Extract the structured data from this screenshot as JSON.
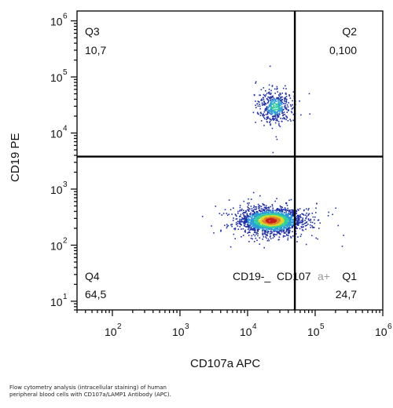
{
  "chart_data": {
    "type": "scatter",
    "xlabel": "CD107a APC",
    "ylabel": "CD19 PE",
    "scale": "log",
    "xlim": [
      30,
      1000000
    ],
    "ylim": [
      7,
      1500000
    ],
    "x_ticks": [
      {
        "base": "10",
        "exp": "2"
      },
      {
        "base": "10",
        "exp": "3"
      },
      {
        "base": "10",
        "exp": "4"
      },
      {
        "base": "10",
        "exp": "5"
      },
      {
        "base": "10",
        "exp": "6"
      }
    ],
    "y_ticks": [
      {
        "base": "10",
        "exp": "1"
      },
      {
        "base": "10",
        "exp": "2"
      },
      {
        "base": "10",
        "exp": "3"
      },
      {
        "base": "10",
        "exp": "4"
      },
      {
        "base": "10",
        "exp": "5"
      },
      {
        "base": "10",
        "exp": "6"
      }
    ],
    "gates": {
      "x": 50000,
      "y": 3800
    },
    "quadrants": [
      {
        "label": "Q3",
        "value": "10,7"
      },
      {
        "label": "Q2",
        "value": "0,100"
      },
      {
        "label": "Q4",
        "value": "64,5"
      },
      {
        "label": "Q1",
        "value": "24,7"
      }
    ],
    "annotation": {
      "left": "CD19-_",
      "mid": "CD107",
      "right": "a+"
    },
    "populations": [
      {
        "name_visible": false,
        "center": [
          22000,
          280
        ],
        "spread_x": 0.22,
        "spread_y": 0.11,
        "count": 2200
      },
      {
        "name_visible": false,
        "center": [
          25000,
          30000
        ],
        "spread_x": 0.12,
        "spread_y": 0.14,
        "count": 450
      }
    ],
    "density_colors": [
      "#1f2fa8",
      "#2a9bd8",
      "#2fcf9a",
      "#d9d92a",
      "#e0842a",
      "#c82020"
    ]
  },
  "caption": "Flow cytometry analysis (intracellular staining) of human peripheral blood cells with CD107a/LAMP1 Antibody (APC)."
}
